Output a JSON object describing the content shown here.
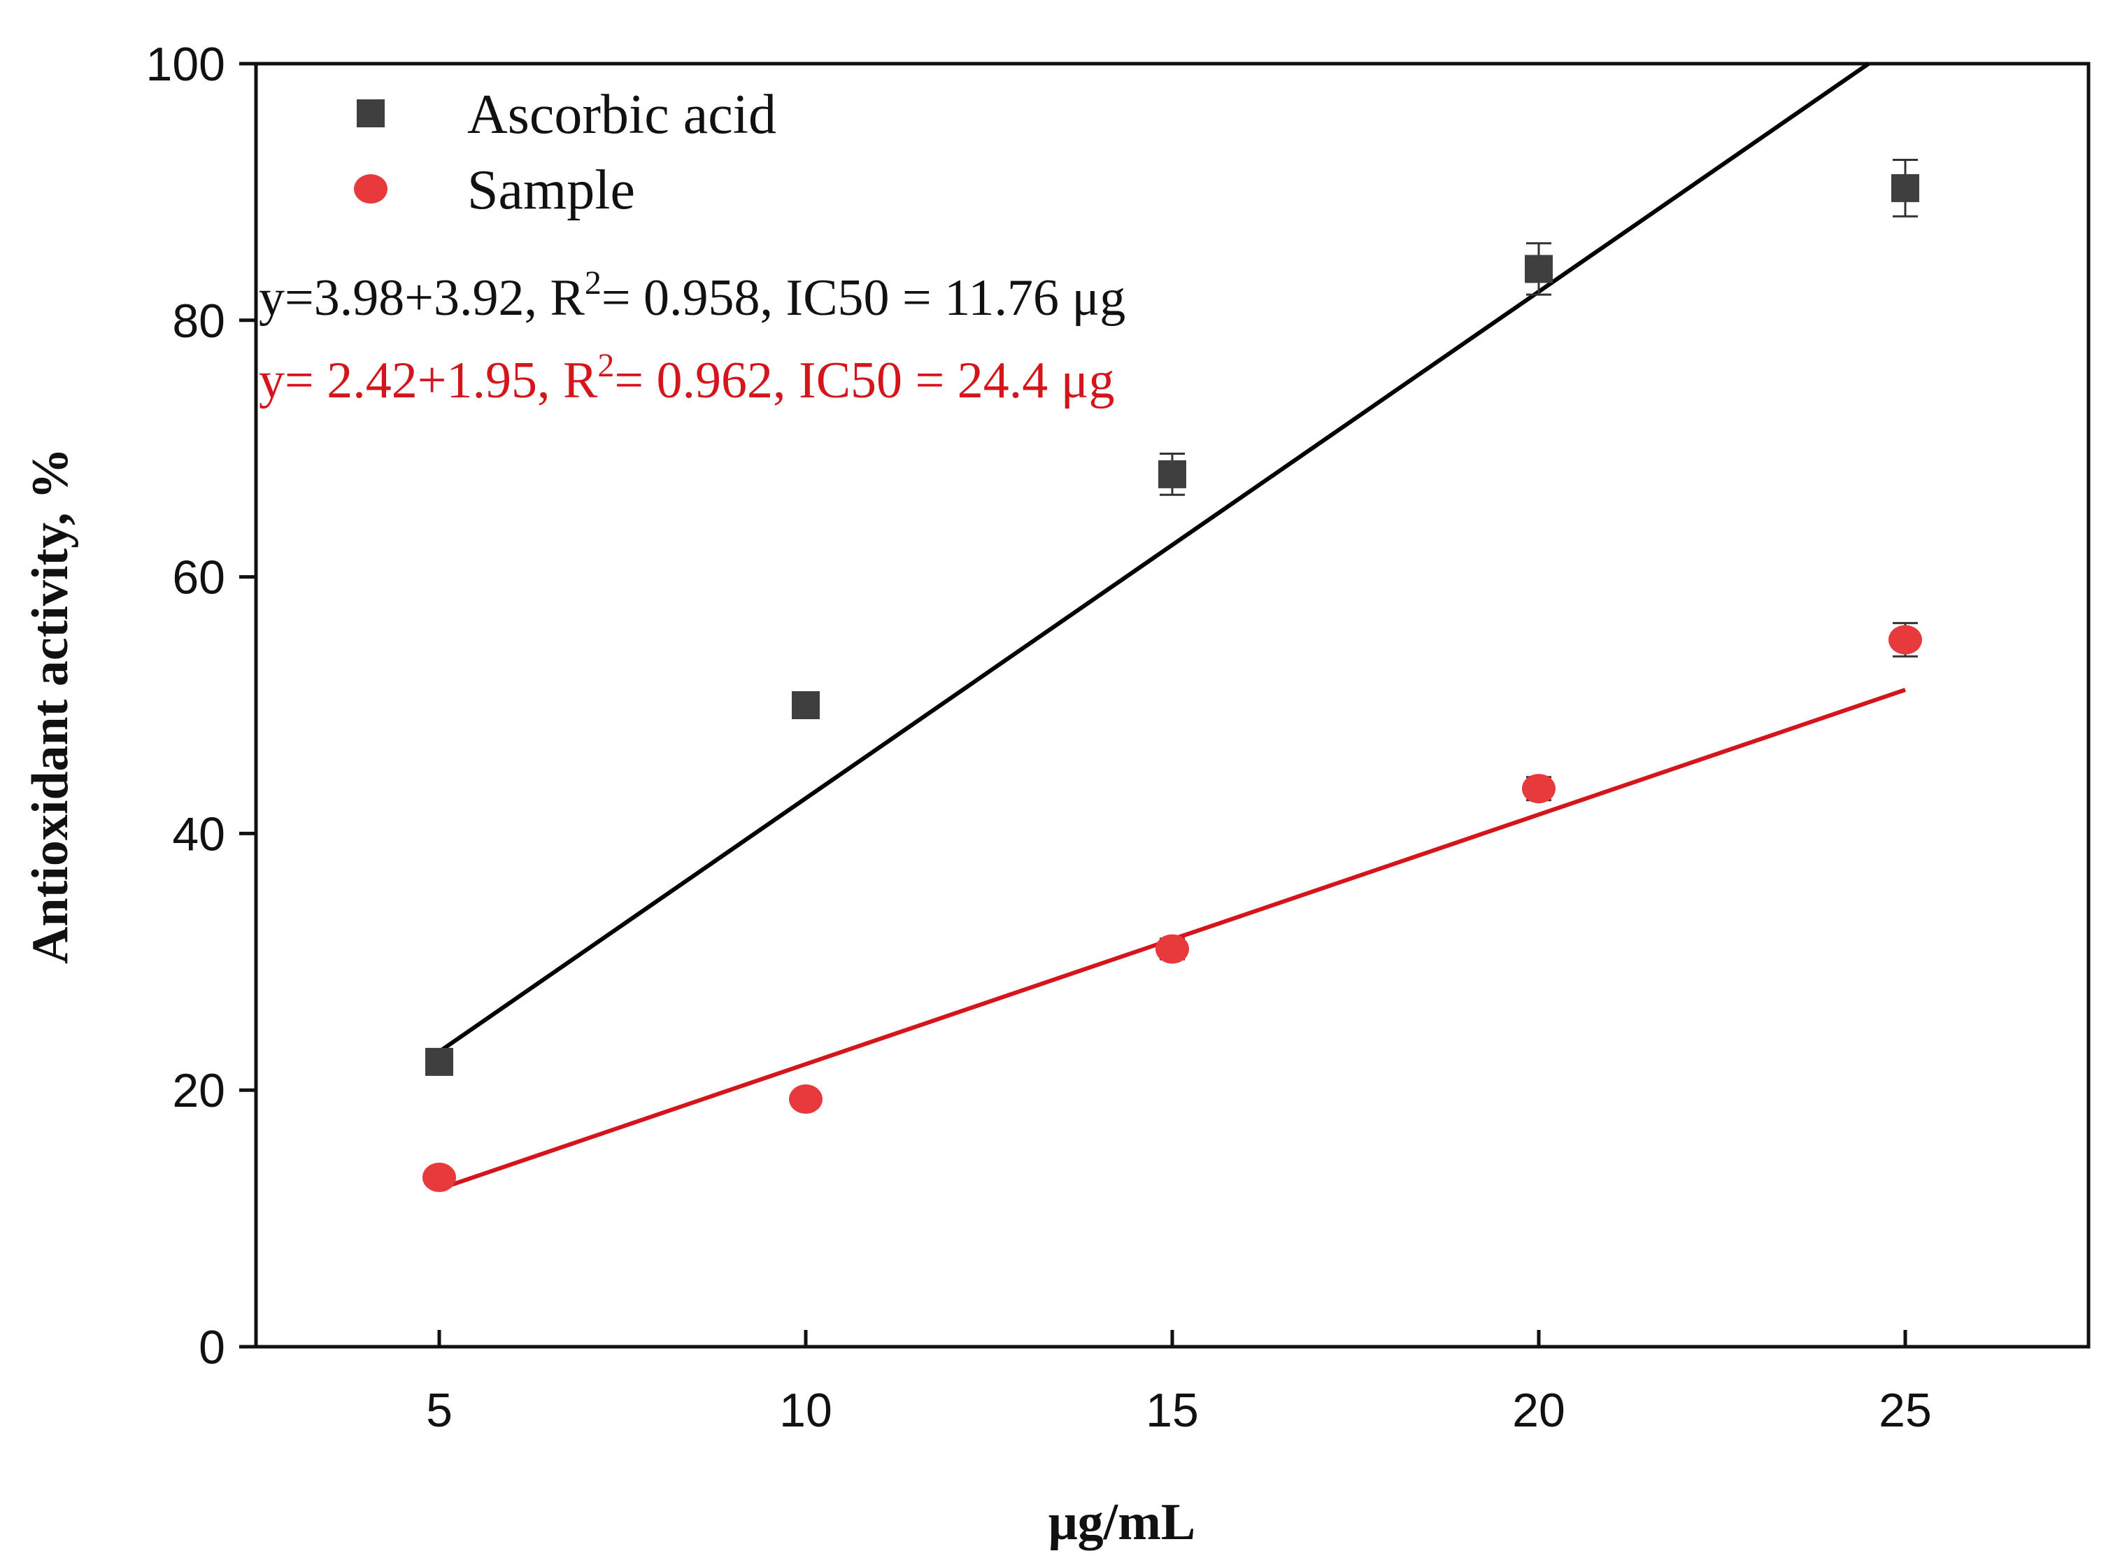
{
  "chart_data": {
    "type": "scatter",
    "xlabel": "μg/mL",
    "ylabel": "Antioxidant activity, %",
    "xlim": [
      2.5,
      27.5
    ],
    "ylim": [
      0,
      100
    ],
    "x_ticks": [
      5,
      10,
      15,
      20,
      25
    ],
    "y_ticks": [
      0,
      20,
      40,
      60,
      80,
      100
    ],
    "grid": false,
    "legend_position": "top-left",
    "series": [
      {
        "name": "Ascorbic acid",
        "marker": "square",
        "color": "#3f3f3f",
        "line_color": "#000000",
        "x": [
          5,
          10,
          15,
          20,
          25
        ],
        "y": [
          22.2,
          50.0,
          68.0,
          84.0,
          90.3
        ],
        "error": [
          0.8,
          1.0,
          1.6,
          2.0,
          2.2
        ],
        "fit": {
          "x": [
            5,
            24.5
          ],
          "y": [
            23.0,
            100
          ]
        }
      },
      {
        "name": "Sample",
        "marker": "circle",
        "color": "#e8393c",
        "line_color": "#d4151b",
        "x": [
          5,
          10,
          15,
          20,
          25
        ],
        "y": [
          13.2,
          19.3,
          31.0,
          43.5,
          55.1
        ],
        "error": [
          0.6,
          0.6,
          0.8,
          0.9,
          1.3
        ],
        "fit": {
          "x": [
            5,
            25
          ],
          "y": [
            12.3,
            51.2
          ]
        }
      }
    ],
    "annotations": [
      {
        "prefix": "y=3.98+3.92, R",
        "sup": "2",
        "suffix": "= 0.958, IC50 = 11.76 μg",
        "color": "#111111"
      },
      {
        "prefix": "y= 2.42+1.95, R",
        "sup": "2",
        "suffix": "= 0.962, IC50 = 24.4 μg",
        "color": "#d4151b"
      }
    ]
  }
}
